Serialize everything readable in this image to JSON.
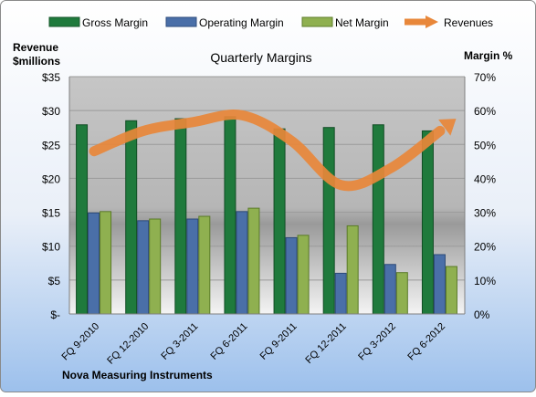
{
  "chart_data": {
    "type": "bar",
    "title": "Quarterly Margins",
    "left_axis_title": [
      "Revenue",
      "$millions"
    ],
    "right_axis_title": "Margin %",
    "footer": "Nova Measuring Instruments",
    "categories": [
      "FQ 9-2010",
      "FQ 12-2010",
      "FQ 3-2011",
      "FQ 6-2011",
      "FQ 9-2011",
      "FQ 12-2011",
      "FQ 3-2012",
      "FQ 6-2012"
    ],
    "left_axis": {
      "ticks": [
        "$-",
        "$5",
        "$10",
        "$15",
        "$20",
        "$25",
        "$30",
        "$35"
      ],
      "min": 0,
      "max": 35
    },
    "right_axis": {
      "ticks": [
        "0%",
        "10%",
        "20%",
        "30%",
        "40%",
        "50%",
        "60%",
        "70%"
      ],
      "min": 0,
      "max": 70
    },
    "series": [
      {
        "name": "Gross Margin",
        "kind": "bar",
        "axis": "right",
        "color": "#1f7a3c",
        "values": [
          55.8,
          57.0,
          57.6,
          58.2,
          54.6,
          55.0,
          55.8,
          54.0
        ]
      },
      {
        "name": "Operating Margin",
        "kind": "bar",
        "axis": "right",
        "color": "#4a6fa8",
        "values": [
          29.8,
          27.5,
          28.0,
          30.2,
          22.5,
          12.0,
          14.6,
          17.5
        ]
      },
      {
        "name": "Net Margin",
        "kind": "bar",
        "axis": "right",
        "color": "#8fb050",
        "values": [
          30.2,
          28.0,
          28.8,
          31.2,
          23.2,
          26.0,
          12.2,
          14.0
        ]
      },
      {
        "name": "Revenues",
        "kind": "line",
        "axis": "left",
        "color": "#e8873a",
        "values": [
          24.0,
          27.0,
          28.3,
          29.3,
          25.5,
          19.0,
          21.5,
          27.0
        ]
      }
    ],
    "legend_position": "top"
  }
}
